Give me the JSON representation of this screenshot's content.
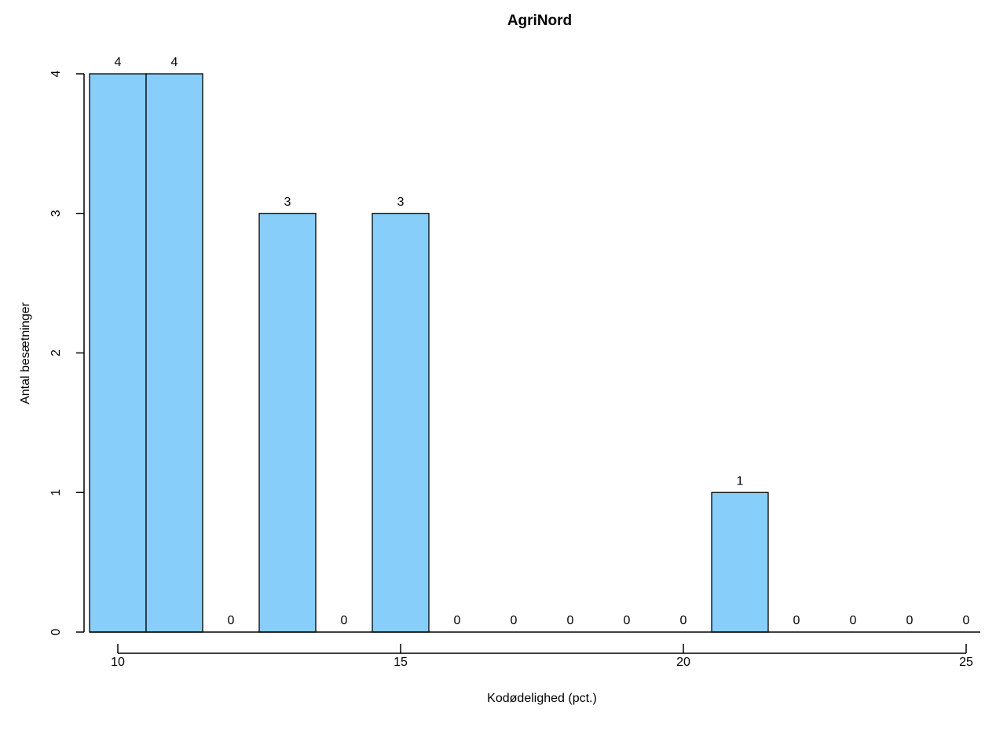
{
  "chart_data": {
    "type": "bar",
    "title": "AgriNord",
    "xlabel": "Kodødelighed (pct.)",
    "ylabel": "Antal besætninger",
    "bar_color": "#87CEFA",
    "bars": [
      {
        "x": 10,
        "value": 4
      },
      {
        "x": 11,
        "value": 4
      },
      {
        "x": 12,
        "value": 0
      },
      {
        "x": 13,
        "value": 3
      },
      {
        "x": 14,
        "value": 0
      },
      {
        "x": 15,
        "value": 3
      },
      {
        "x": 16,
        "value": 0
      },
      {
        "x": 17,
        "value": 0
      },
      {
        "x": 18,
        "value": 0
      },
      {
        "x": 19,
        "value": 0
      },
      {
        "x": 20,
        "value": 0
      },
      {
        "x": 21,
        "value": 1
      },
      {
        "x": 22,
        "value": 0
      },
      {
        "x": 23,
        "value": 0
      },
      {
        "x": 24,
        "value": 0
      },
      {
        "x": 25,
        "value": 0
      }
    ],
    "x_ticks": [
      "10",
      "15",
      "20",
      "25"
    ],
    "y_ticks": [
      "0",
      "1",
      "2",
      "3",
      "4"
    ],
    "xlim": [
      10,
      25
    ],
    "ylim": [
      0,
      4
    ],
    "grid": false
  }
}
